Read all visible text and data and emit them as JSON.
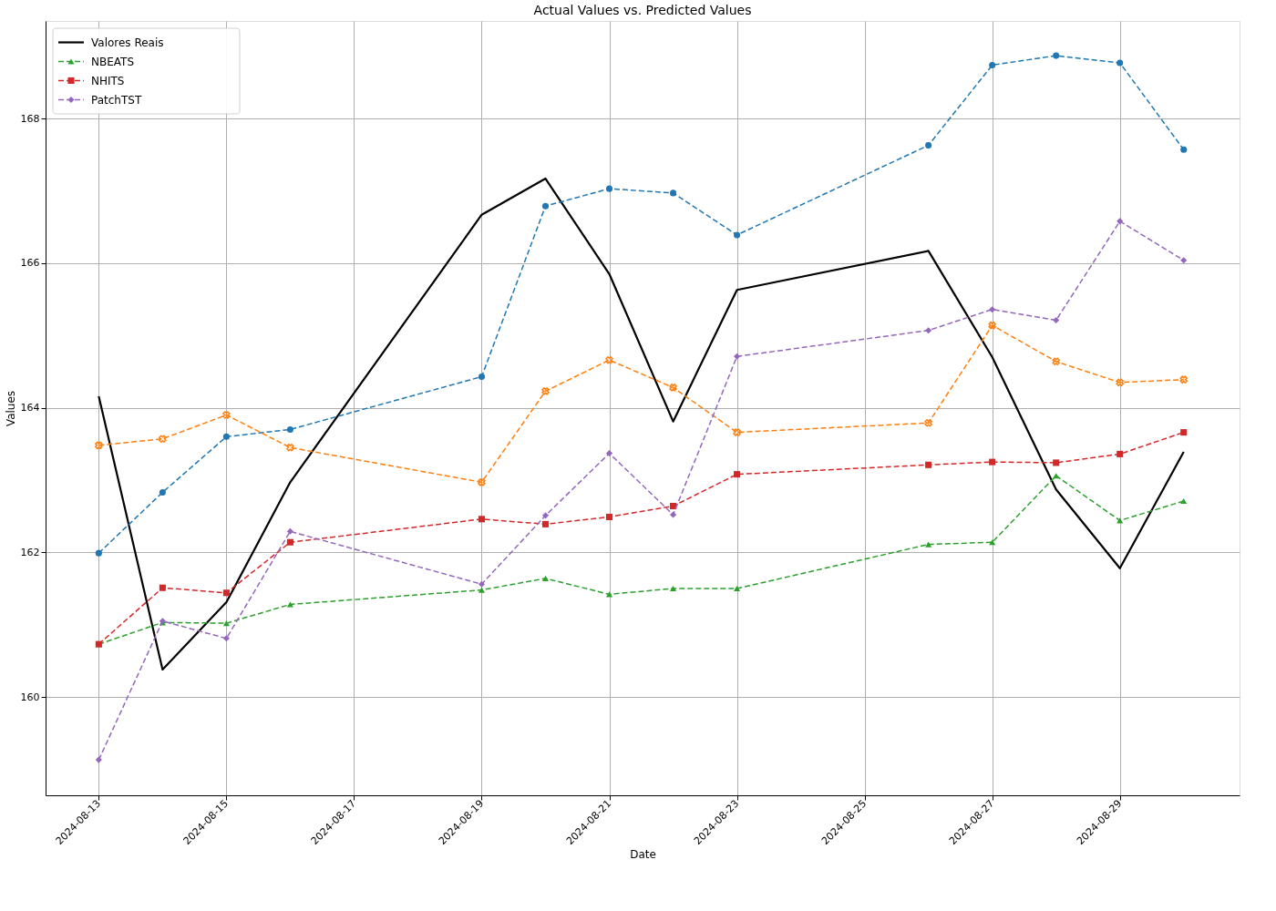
{
  "chart_data": {
    "type": "line",
    "title": "Actual Values vs. Predicted Values",
    "xlabel": "Date",
    "ylabel": "Values",
    "x": [
      "2024-08-13",
      "2024-08-14",
      "2024-08-15",
      "2024-08-16",
      "2024-08-19",
      "2024-08-20",
      "2024-08-21",
      "2024-08-22",
      "2024-08-23",
      "2024-08-26",
      "2024-08-27",
      "2024-08-28",
      "2024-08-29",
      "2024-08-30"
    ],
    "xlim": [
      "2024-08-12T04:00",
      "2024-08-30T21:00"
    ],
    "xticks": [
      "2024-08-13",
      "2024-08-15",
      "2024-08-17",
      "2024-08-19",
      "2024-08-21",
      "2024-08-23",
      "2024-08-25",
      "2024-08-27",
      "2024-08-29"
    ],
    "ylim": [
      158.64,
      169.35
    ],
    "yticks": [
      160,
      162,
      164,
      166,
      168
    ],
    "grid": true,
    "legend": "top left",
    "series": [
      {
        "name": "Valores Reais",
        "color": "#000000",
        "marker": "none",
        "line_style": "solid",
        "values": [
          164.16,
          160.38,
          161.31,
          162.97,
          166.67,
          167.17,
          165.85,
          163.81,
          165.63,
          166.17,
          164.7,
          162.87,
          161.78,
          163.39
        ]
      },
      {
        "color": "#1f77b4",
        "marker": "circle",
        "line_style": "dashed",
        "values": [
          161.99,
          162.83,
          163.6,
          163.7,
          164.43,
          166.79,
          167.03,
          166.97,
          166.39,
          167.63,
          168.74,
          168.87,
          168.77,
          167.57
        ]
      },
      {
        "color": "#ff7f0e",
        "marker": "cross",
        "line_style": "dashed",
        "values": [
          163.48,
          163.57,
          163.9,
          163.45,
          162.97,
          164.23,
          164.66,
          164.28,
          163.66,
          163.79,
          165.14,
          164.64,
          164.35,
          164.39
        ]
      },
      {
        "name": "NBEATS",
        "color": "#2ca02c",
        "marker": "triangle",
        "line_style": "dashed",
        "values": [
          160.73,
          161.03,
          161.02,
          161.28,
          161.48,
          161.64,
          161.42,
          161.5,
          161.5,
          162.11,
          162.14,
          163.06,
          162.44,
          162.71
        ]
      },
      {
        "name": "NHITS",
        "color": "#d62728",
        "marker": "square",
        "line_style": "dashed",
        "values": [
          160.73,
          161.51,
          161.44,
          162.14,
          162.46,
          162.39,
          162.49,
          162.64,
          163.08,
          163.21,
          163.25,
          163.24,
          163.36,
          163.66
        ]
      },
      {
        "name": "PatchTST",
        "color": "#9467bd",
        "marker": "diamond",
        "line_style": "dashed",
        "values": [
          159.13,
          161.05,
          160.81,
          162.29,
          161.56,
          162.51,
          163.37,
          162.52,
          164.71,
          165.07,
          165.36,
          165.21,
          166.58,
          166.04
        ]
      }
    ]
  }
}
